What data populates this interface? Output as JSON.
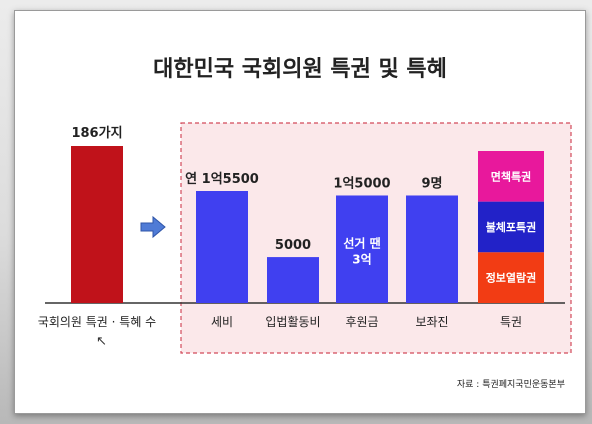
{
  "chart_data": {
    "type": "bar",
    "title": "대한민국 국회의원 특권 및 특혜",
    "source": "자료 : 특권폐지국민운동본부",
    "left_bar": {
      "category": "국회의원 특권 · 특혜 수",
      "label": "186가지",
      "color": "#c0121a"
    },
    "arrow": "right-arrow-icon",
    "bars": [
      {
        "category": "세비",
        "label": "연 1억5500",
        "inner_label": "",
        "relative_height": 1.0
      },
      {
        "category": "입법활동비",
        "label": "5000",
        "inner_label": "",
        "relative_height": 0.41
      },
      {
        "category": "후원금",
        "label": "1억5000",
        "inner_label": "선거 땐 3억",
        "relative_height": 0.96
      },
      {
        "category": "보좌진",
        "label": "9명",
        "inner_label": "",
        "relative_height": 0.96
      }
    ],
    "bar_color": "#4040f0",
    "privileges": {
      "category": "특권",
      "items": [
        {
          "label": "면책특권",
          "color": "#e8189c"
        },
        {
          "label": "불체포특권",
          "color": "#2222c8"
        },
        {
          "label": "정보열람권",
          "color": "#f23c14"
        }
      ]
    },
    "grid": false,
    "legend": "none"
  }
}
